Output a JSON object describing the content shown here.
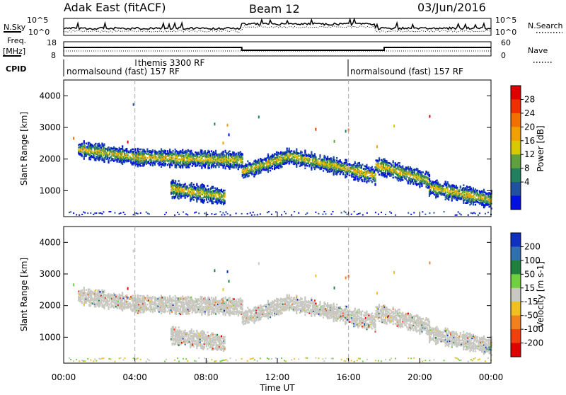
{
  "header": {
    "station": "Adak East (fitACF)",
    "beam": "Beam 12",
    "date": "03/Jun/2016"
  },
  "summary_panel": {
    "nsky_label": "N.Sky",
    "nsky_ticks": [
      "10^5",
      "10^0"
    ],
    "nsearch_label": "N.Search",
    "nsearch_ticks": [
      "10^5",
      "10^0"
    ],
    "freq_label": "Freq.",
    "freq_unit": "[MHz]",
    "freq_ticks": [
      "18",
      "8"
    ],
    "nave_label": "Nave",
    "nave_ticks": [
      "60",
      "0"
    ],
    "cpid_label": "CPID",
    "cpid_segments": [
      {
        "label": "normalsound (fast) 157 RF",
        "start_h": 0,
        "end_h": 16
      },
      {
        "label": "themis 3300 RF",
        "start_h": 4,
        "end_h": 4
      },
      {
        "label": "normalsound (fast) 157 RF",
        "start_h": 16,
        "end_h": 24
      }
    ],
    "freq_profile": [
      [
        0,
        14
      ],
      [
        10,
        14
      ],
      [
        10,
        12
      ],
      [
        18,
        12
      ],
      [
        18,
        14
      ],
      [
        24,
        14
      ]
    ]
  },
  "chart_data": [
    {
      "type": "heatmap",
      "name": "power",
      "ylabel": "Slant Range [km]",
      "yticks": [
        1000,
        2000,
        3000,
        4000
      ],
      "ylim": [
        180,
        4500
      ],
      "xlim": [
        0,
        24
      ],
      "colorbar": {
        "label": "Power [dB]",
        "ticks": [
          "28",
          "24",
          "20",
          "16",
          "12",
          "8",
          "4"
        ],
        "colors": [
          "#e00000",
          "#f03000",
          "#f07000",
          "#f0a000",
          "#d8c800",
          "#60a040",
          "#208060",
          "#2050a0",
          "#0010e0"
        ]
      },
      "echo_bands": [
        {
          "t_start": 0.8,
          "t_end": 4.0,
          "r_start": 2300,
          "r_end": 2050
        },
        {
          "t_start": 4.0,
          "t_end": 10.0,
          "r_start": 2050,
          "r_end": 1950
        },
        {
          "t_start": 10.0,
          "t_end": 12.5,
          "r_start": 1600,
          "r_end": 2050
        },
        {
          "t_start": 12.5,
          "t_end": 15.0,
          "r_start": 2100,
          "r_end": 1800
        },
        {
          "t_start": 15.0,
          "t_end": 17.5,
          "r_start": 1800,
          "r_end": 1450
        },
        {
          "t_start": 17.5,
          "t_end": 20.5,
          "r_start": 1800,
          "r_end": 1300
        },
        {
          "t_start": 20.5,
          "t_end": 24.0,
          "r_start": 1100,
          "r_end": 700
        },
        {
          "t_start": 6.0,
          "t_end": 9.0,
          "r_start": 1050,
          "r_end": 800
        }
      ]
    },
    {
      "type": "heatmap",
      "name": "velocity",
      "ylabel": "Slant Range [km]",
      "xlabel": "Time UT",
      "yticks": [
        1000,
        2000,
        3000,
        4000
      ],
      "ylim": [
        180,
        4500
      ],
      "xlim": [
        0,
        24
      ],
      "xticks": [
        "00:00",
        "04:00",
        "08:00",
        "12:00",
        "16:00",
        "20:00",
        "00:00"
      ],
      "colorbar": {
        "label": "Velocity [m s-1]",
        "ticks": [
          "200",
          "100",
          "50",
          "15",
          "-15",
          "-50",
          "-100",
          "-200"
        ],
        "colors": [
          "#1030c0",
          "#3070b0",
          "#208040",
          "#70d040",
          "#c8c8c0",
          "#f0c020",
          "#f08020",
          "#f04010",
          "#e00000"
        ]
      }
    }
  ]
}
